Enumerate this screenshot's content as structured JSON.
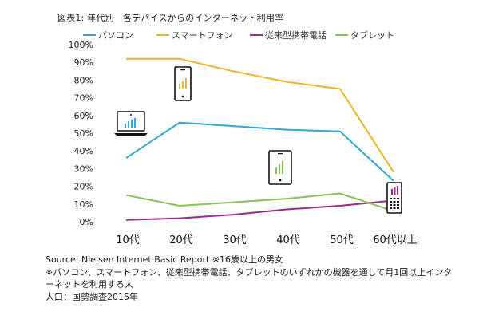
{
  "chart_data": {
    "type": "line",
    "title": "図表1: 年代別　各デバイスからのインターネット利用率",
    "categories": [
      "10代",
      "20代",
      "30代",
      "40代",
      "50代",
      "60代以上"
    ],
    "ylim": [
      0,
      100
    ],
    "yticks": [
      "0%",
      "10%",
      "20%",
      "30%",
      "40%",
      "50%",
      "60%",
      "70%",
      "80%",
      "90%",
      "100%"
    ],
    "grid": false,
    "legend_position": "top",
    "series": [
      {
        "name": "パソコン",
        "color": "#2fa8d8",
        "values": [
          36,
          56,
          54,
          52,
          51,
          23
        ]
      },
      {
        "name": "スマートフォン",
        "color": "#f0b429",
        "values": [
          92,
          92,
          85,
          79,
          75,
          28
        ]
      },
      {
        "name": "従来型携帯電話",
        "color": "#9c2a8c",
        "values": [
          1,
          2,
          4,
          7,
          9,
          12
        ]
      },
      {
        "name": "タブレット",
        "color": "#8cc154",
        "values": [
          15,
          9,
          11,
          13,
          16,
          6
        ]
      }
    ]
  },
  "notes": {
    "source": "Source: Nielsen Internet Basic Report ※16歳以上の男女",
    "definition": "※パソコン、スマートフォン、従来型携帯電話、タブレットのいずれかの機器を通して月1回以上インターネットを利用する人",
    "population": "人口：国勢調査2015年"
  },
  "icons": [
    "laptop-icon",
    "smartphone-icon",
    "tablet-icon",
    "feature-phone-icon"
  ]
}
